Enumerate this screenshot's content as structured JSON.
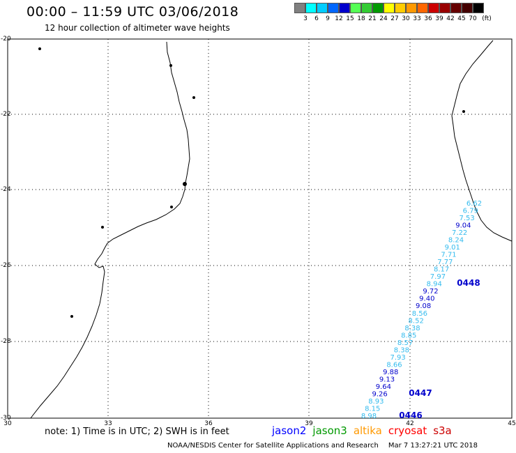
{
  "header": {
    "title": "00:00 – 11:59 UTC 03/06/2018",
    "subtitle": "12 hour collection of altimeter wave heights"
  },
  "color_scale": {
    "colors": [
      "#808080",
      "#00ffff",
      "#00ccff",
      "#0066ff",
      "#0000cc",
      "#55ff55",
      "#33cc33",
      "#009900",
      "#ffff00",
      "#ffcc00",
      "#ff9900",
      "#ff6600",
      "#cc0000",
      "#990000",
      "#660000",
      "#440000",
      "#000000"
    ],
    "labels": [
      "3",
      "6",
      "9",
      "12",
      "15",
      "18",
      "21",
      "24",
      "27",
      "30",
      "33",
      "36",
      "39",
      "42",
      "45",
      "70",
      "(ft)"
    ]
  },
  "axes": {
    "x_ticks": [
      "30",
      "33",
      "36",
      "39",
      "42",
      "45"
    ],
    "y_ticks": [
      "-20",
      "-22",
      "-24",
      "-26",
      "-28",
      "-30"
    ]
  },
  "track": {
    "values": [
      "6.62",
      "6.79",
      "7.53",
      "9.04",
      "7.22",
      "8.24",
      "9.01",
      "7.71",
      "7.77",
      "8.17",
      "7.97",
      "8.94",
      "9.72",
      "9.40",
      "9.08",
      "8.56",
      "8.52",
      "8.38",
      "8.85",
      "8.57",
      "8.38",
      "7.93",
      "8.66",
      "9.88",
      "9.13",
      "9.64",
      "9.26",
      "8.93",
      "8.15",
      "8.98"
    ],
    "colors": [
      "#33bbee",
      "#33bbee",
      "#33bbee",
      "#0000cc",
      "#33bbee",
      "#33bbee",
      "#33bbee",
      "#33bbee",
      "#33bbee",
      "#33bbee",
      "#33bbee",
      "#33bbee",
      "#0000cc",
      "#0000cc",
      "#0000cc",
      "#33bbee",
      "#33bbee",
      "#33bbee",
      "#33bbee",
      "#33bbee",
      "#33bbee",
      "#33bbee",
      "#33bbee",
      "#0000cc",
      "#0000cc",
      "#0000cc",
      "#0000cc",
      "#33bbee",
      "#33bbee",
      "#33bbee"
    ],
    "time_labels": [
      "0448",
      "0447",
      "0446"
    ]
  },
  "notes": {
    "text": "note: 1) Time is in UTC; 2) SWH is in feet",
    "satellites": [
      {
        "name": "jason2",
        "color": "#0000ff"
      },
      {
        "name": "jason3",
        "color": "#009900"
      },
      {
        "name": "altika",
        "color": "#ff9900"
      },
      {
        "name": "cryosat",
        "color": "#ff0000"
      },
      {
        "name": "s3a",
        "color": "#cc0000"
      }
    ],
    "credit": "NOAA/NESDIS Center for Satellite Applications and Research",
    "timestamp": "Mar  7 13:27:21 UTC 2018"
  }
}
